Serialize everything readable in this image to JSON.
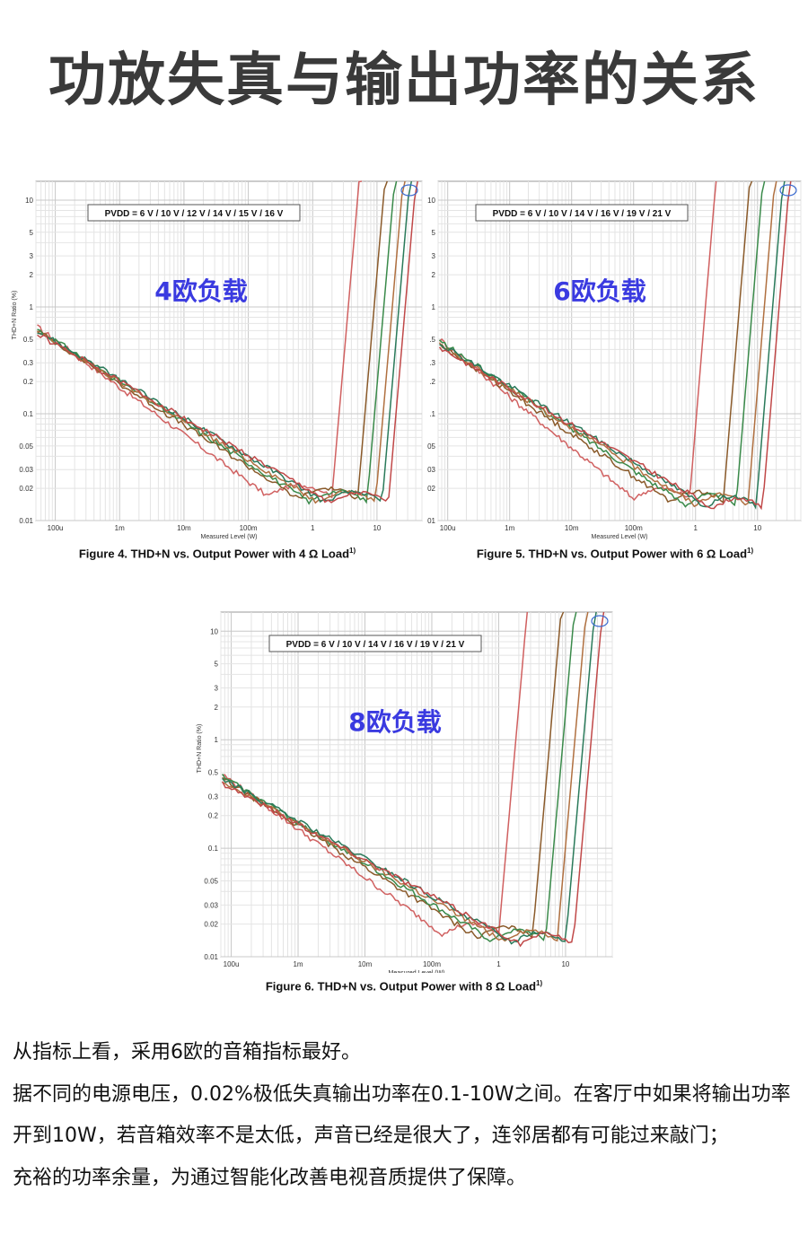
{
  "page_title": "功放失真与输出功率的关系",
  "chart_data": [
    {
      "type": "line",
      "overlay_label": "4欧负载",
      "legend_text": "PVDD = 6 V / 10 V / 12 V / 14 V / 15 V / 16 V",
      "caption": "Figure 4. THD+N vs. Output Power with 4 Ω Load",
      "caption_sup": "1)",
      "xlabel": "Measured Level (W)",
      "ylabel": "THD+N Ratio (%)",
      "x_scale": "log",
      "y_scale": "log",
      "xlim": [
        5e-05,
        50
      ],
      "ylim": [
        0.01,
        15
      ],
      "x_ticks": [
        {
          "v": 0.0001,
          "t": "100u"
        },
        {
          "v": 0.001,
          "t": "1m"
        },
        {
          "v": 0.01,
          "t": "10m"
        },
        {
          "v": 0.1,
          "t": "100m"
        },
        {
          "v": 1,
          "t": "1"
        },
        {
          "v": 10,
          "t": "10"
        }
      ],
      "y_ticks": [
        {
          "v": 10,
          "t": "10"
        },
        {
          "v": 5,
          "t": "5"
        },
        {
          "v": 3,
          "t": "3"
        },
        {
          "v": 2,
          "t": "2"
        },
        {
          "v": 1,
          "t": "1"
        },
        {
          "v": 0.5,
          "t": "0.5"
        },
        {
          "v": 0.3,
          "t": "0.3"
        },
        {
          "v": 0.2,
          "t": "0.2"
        },
        {
          "v": 0.1,
          "t": "0.1"
        },
        {
          "v": 0.05,
          "t": "0.05"
        },
        {
          "v": 0.03,
          "t": "0.03"
        },
        {
          "v": 0.02,
          "t": "0.02"
        },
        {
          "v": 0.01,
          "t": "0.01"
        }
      ],
      "grid": true,
      "series": [
        {
          "color": "#d06060",
          "start": 0.65,
          "min_x": 0.2,
          "min_y": 0.017,
          "rise_x": 2.0
        },
        {
          "color": "#8a5a2a",
          "start": 0.6,
          "min_x": 0.6,
          "min_y": 0.016,
          "rise_x": 5.0
        },
        {
          "color": "#3a8a4a",
          "start": 0.62,
          "min_x": 0.9,
          "min_y": 0.015,
          "rise_x": 7.0
        },
        {
          "color": "#b07040",
          "start": 0.58,
          "min_x": 1.2,
          "min_y": 0.015,
          "rise_x": 9.5
        },
        {
          "color": "#2a7a5a",
          "start": 0.6,
          "min_x": 1.6,
          "min_y": 0.0148,
          "rise_x": 12.0
        },
        {
          "color": "#c04848",
          "start": 0.56,
          "min_x": 2.0,
          "min_y": 0.0145,
          "rise_x": 15.0
        }
      ]
    },
    {
      "type": "line",
      "overlay_label": "6欧负载",
      "legend_text": "PVDD = 6 V / 10 V / 14 V / 16 V / 19 V / 21 V",
      "caption": "Figure 5. THD+N vs. Output Power with 6 Ω Load",
      "caption_sup": "1)",
      "xlabel": "Measured Level (W)",
      "ylabel": "",
      "x_scale": "log",
      "y_scale": "log",
      "xlim": [
        7e-05,
        50
      ],
      "ylim": [
        0.01,
        15
      ],
      "x_ticks": [
        {
          "v": 0.0001,
          "t": "100u"
        },
        {
          "v": 0.001,
          "t": "1m"
        },
        {
          "v": 0.01,
          "t": "10m"
        },
        {
          "v": 0.1,
          "t": "100m"
        },
        {
          "v": 1,
          "t": "1"
        },
        {
          "v": 10,
          "t": "10"
        }
      ],
      "y_ticks": [
        {
          "v": 10,
          "t": "10"
        },
        {
          "v": 5,
          "t": "5"
        },
        {
          "v": 3,
          "t": "3"
        },
        {
          "v": 2,
          "t": "2"
        },
        {
          "v": 1,
          "t": "1"
        },
        {
          "v": 0.5,
          "t": ".5"
        },
        {
          "v": 0.3,
          "t": ".3"
        },
        {
          "v": 0.2,
          "t": ".2"
        },
        {
          "v": 0.1,
          "t": ".1"
        },
        {
          "v": 0.05,
          "t": "05"
        },
        {
          "v": 0.03,
          "t": "03"
        },
        {
          "v": 0.02,
          "t": "02"
        },
        {
          "v": 0.01,
          "t": "01"
        }
      ],
      "grid": true,
      "series": [
        {
          "color": "#d06060",
          "start": 0.5,
          "min_x": 0.1,
          "min_y": 0.016,
          "rise_x": 0.8
        },
        {
          "color": "#8a5a2a",
          "start": 0.45,
          "min_x": 0.4,
          "min_y": 0.015,
          "rise_x": 2.8
        },
        {
          "color": "#3a8a4a",
          "start": 0.48,
          "min_x": 0.7,
          "min_y": 0.014,
          "rise_x": 4.5
        },
        {
          "color": "#b07040",
          "start": 0.44,
          "min_x": 1.0,
          "min_y": 0.014,
          "rise_x": 7.0
        },
        {
          "color": "#2a7a5a",
          "start": 0.46,
          "min_x": 1.5,
          "min_y": 0.0135,
          "rise_x": 9.5
        },
        {
          "color": "#c04848",
          "start": 0.42,
          "min_x": 2.0,
          "min_y": 0.013,
          "rise_x": 12.0
        }
      ]
    },
    {
      "type": "line",
      "overlay_label": "8欧负载",
      "legend_text": "PVDD = 6 V / 10 V / 14 V / 16 V / 19 V / 21 V",
      "caption": "Figure 6. THD+N vs. Output Power with 8 Ω Load",
      "caption_sup": "1)",
      "xlabel": "Measured Level (W)",
      "ylabel": "THD+N Ratio (%)",
      "x_scale": "log",
      "y_scale": "log",
      "xlim": [
        7e-05,
        50
      ],
      "ylim": [
        0.01,
        15
      ],
      "x_ticks": [
        {
          "v": 0.0001,
          "t": "100u"
        },
        {
          "v": 0.001,
          "t": "1m"
        },
        {
          "v": 0.01,
          "t": "10m"
        },
        {
          "v": 0.1,
          "t": "100m"
        },
        {
          "v": 1,
          "t": "1"
        },
        {
          "v": 10,
          "t": "10"
        }
      ],
      "y_ticks": [
        {
          "v": 10,
          "t": "10"
        },
        {
          "v": 5,
          "t": "5"
        },
        {
          "v": 3,
          "t": "3"
        },
        {
          "v": 2,
          "t": "2"
        },
        {
          "v": 1,
          "t": "1"
        },
        {
          "v": 0.5,
          "t": "0.5"
        },
        {
          "v": 0.3,
          "t": "0.3"
        },
        {
          "v": 0.2,
          "t": "0.2"
        },
        {
          "v": 0.1,
          "t": "0.1"
        },
        {
          "v": 0.05,
          "t": "0.05"
        },
        {
          "v": 0.03,
          "t": "0.03"
        },
        {
          "v": 0.02,
          "t": "0.02"
        },
        {
          "v": 0.01,
          "t": "0.01"
        }
      ],
      "grid": true,
      "series": [
        {
          "color": "#d06060",
          "start": 0.48,
          "min_x": 0.15,
          "min_y": 0.016,
          "rise_x": 1.0
        },
        {
          "color": "#8a5a2a",
          "start": 0.44,
          "min_x": 0.5,
          "min_y": 0.015,
          "rise_x": 3.2
        },
        {
          "color": "#3a8a4a",
          "start": 0.46,
          "min_x": 0.8,
          "min_y": 0.014,
          "rise_x": 5.0
        },
        {
          "color": "#b07040",
          "start": 0.42,
          "min_x": 1.2,
          "min_y": 0.014,
          "rise_x": 7.5
        },
        {
          "color": "#2a7a5a",
          "start": 0.44,
          "min_x": 1.7,
          "min_y": 0.0135,
          "rise_x": 10.0
        },
        {
          "color": "#c04848",
          "start": 0.4,
          "min_x": 2.2,
          "min_y": 0.013,
          "rise_x": 13.0
        }
      ]
    }
  ],
  "body_paragraphs": [
    "从指标上看，采用6欧的音箱指标最好。",
    "据不同的电源电压，0.02%极低失真输出功率在0.1-10W之间。在客厅中如果将输出功率开到10W，若音箱效率不是太低，声音已经是很大了，连邻居都有可能过来敲门；",
    "充裕的功率余量，为通过智能化改善电视音质提供了保障。"
  ],
  "colors": {
    "overlay_label": "#3a3ae0",
    "title": "#3a3a3a",
    "grid": "#dcdcdc"
  }
}
